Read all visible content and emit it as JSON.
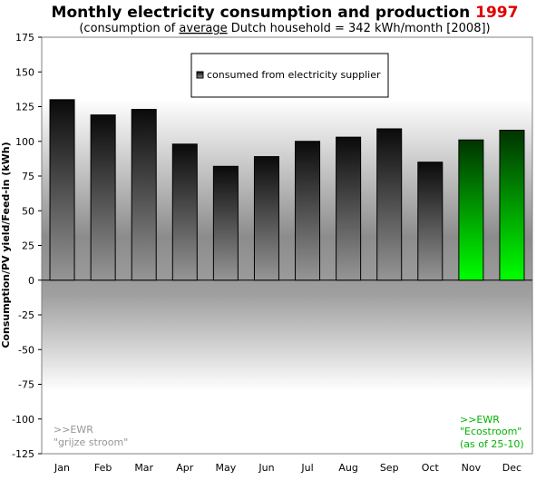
{
  "chart_data": {
    "type": "bar",
    "title_main": "Monthly electricity consumption and production",
    "title_year": "1997",
    "subtitle_prefix": "(consumption of ",
    "subtitle_emph": "average",
    "subtitle_suffix": " Dutch household = 342 kWh/month [2008])",
    "ylabel": "Consumption/PV yield/Feed-in (kWh)",
    "xlabel": "",
    "ylim": [
      -125,
      175
    ],
    "yticks": [
      175,
      150,
      125,
      100,
      75,
      50,
      25,
      0,
      -25,
      -50,
      -75,
      -100,
      -125
    ],
    "categories": [
      "Jan",
      "Feb",
      "Mar",
      "Apr",
      "May",
      "Jun",
      "Jul",
      "Aug",
      "Sep",
      "Oct",
      "Nov",
      "Dec"
    ],
    "series": [
      {
        "name": "consumed from electricity supplier",
        "values": [
          130,
          119,
          123,
          98,
          82,
          89,
          100,
          103,
          109,
          85,
          101,
          108
        ],
        "supplier": [
          "grey",
          "grey",
          "grey",
          "grey",
          "grey",
          "grey",
          "grey",
          "grey",
          "grey",
          "grey",
          "green",
          "green"
        ]
      }
    ],
    "legend_position": "top-center",
    "grid": false,
    "annotations": {
      "left_line1": ">>EWR",
      "left_line2": "\"grijze stroom\"",
      "right_line1": ">>EWR",
      "right_line2": "\"Ecostroom\"",
      "right_line3": "(as of 25-10)"
    },
    "colors": {
      "title_year": "#e00000",
      "green_bar": "#00ff00",
      "grey_bar": "#969696",
      "annotation_left": "#969696",
      "annotation_right": "#00b400"
    }
  }
}
